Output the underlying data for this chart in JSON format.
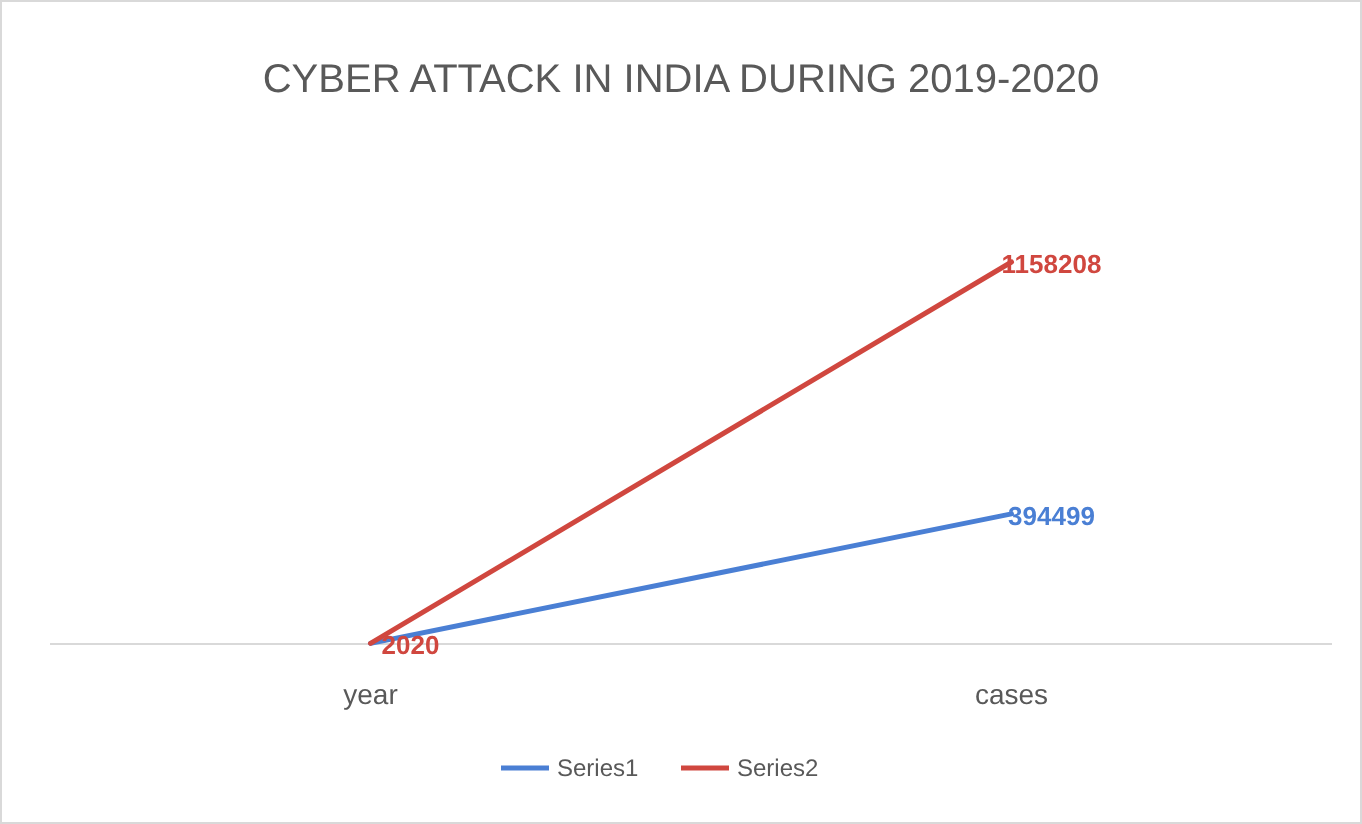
{
  "chart_data": {
    "type": "line",
    "title": "CYBER ATTACK IN INDIA DURING 2019-2020",
    "categories": [
      "year",
      "cases"
    ],
    "series": [
      {
        "name": "Series1",
        "color": "#4a7fd4",
        "values": [
          2019,
          394499
        ],
        "value_labels": [
          null,
          "394499"
        ]
      },
      {
        "name": "Series2",
        "color": "#d0473f",
        "values": [
          2020,
          1158208
        ],
        "value_labels": [
          "2020",
          "1158208"
        ]
      }
    ],
    "tick_labels": "x",
    "legend": "bottom",
    "grid": false,
    "marker": "none",
    "line_style": "solid"
  }
}
